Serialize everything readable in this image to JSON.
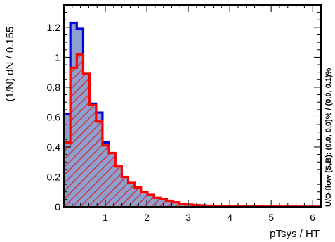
{
  "chart_data": {
    "type": "histogram",
    "xlabel": "pTsys / HT",
    "ylabel": "(1/N) dN / 0.155",
    "side_note": "U/O-flow (S,B): (0.0, 0.0)% / (0.0, 0.1)%",
    "xlim": [
      0,
      6.2
    ],
    "ylim": [
      0,
      1.35
    ],
    "x_ticks": [
      1,
      2,
      3,
      4,
      5,
      6
    ],
    "y_ticks": [
      0,
      0.2,
      0.4,
      0.6,
      0.8,
      1,
      1.2
    ],
    "y_tick_labels": [
      "0",
      "0.2",
      "0.4",
      "0.6",
      "0.8",
      "1",
      "1.2"
    ],
    "bin_width": 0.155,
    "bin_edges": [
      0,
      0.155,
      0.31,
      0.465,
      0.62,
      0.775,
      0.93,
      1.085,
      1.24,
      1.395,
      1.55,
      1.705,
      1.86,
      2.015,
      2.17,
      2.325,
      2.48,
      2.635,
      2.79,
      2.945,
      3.1,
      3.255,
      3.41,
      3.565,
      3.72,
      3.875,
      4.03,
      4.185,
      4.34,
      4.495,
      4.65,
      4.805,
      4.96,
      5.115,
      5.27,
      5.425,
      5.58,
      5.735,
      5.89,
      6.045,
      6.2
    ],
    "series": [
      {
        "name": "S",
        "fill": "#8da0cf",
        "line": "#0000dd",
        "values": [
          0.62,
          1.23,
          1.19,
          0.88,
          0.69,
          0.63,
          0.43,
          0.34,
          0.23,
          0.16,
          0.11,
          0.09,
          0.06,
          0.04,
          0.03,
          0.025,
          0.02,
          0.014,
          0.01,
          0.007,
          0.005,
          0.004,
          0.003,
          0.002,
          0.002,
          0.001,
          0.001,
          0.001,
          0.001,
          0.0005,
          0.0005,
          0.0005,
          0.0005,
          0.0003,
          0.0003,
          0.0002,
          0.0002,
          0.0001,
          0.0001,
          0.0001
        ]
      },
      {
        "name": "B",
        "fill": "hatch",
        "line": "#ff0000",
        "values": [
          0.43,
          0.93,
          1.02,
          0.89,
          0.68,
          0.57,
          0.41,
          0.36,
          0.27,
          0.2,
          0.16,
          0.13,
          0.1,
          0.08,
          0.06,
          0.05,
          0.04,
          0.03,
          0.02,
          0.015,
          0.012,
          0.01,
          0.008,
          0.006,
          0.005,
          0.004,
          0.003,
          0.003,
          0.002,
          0.002,
          0.002,
          0.0015,
          0.0015,
          0.001,
          0.001,
          0.001,
          0.0008,
          0.0008,
          0.0006,
          0.0006
        ]
      }
    ]
  }
}
